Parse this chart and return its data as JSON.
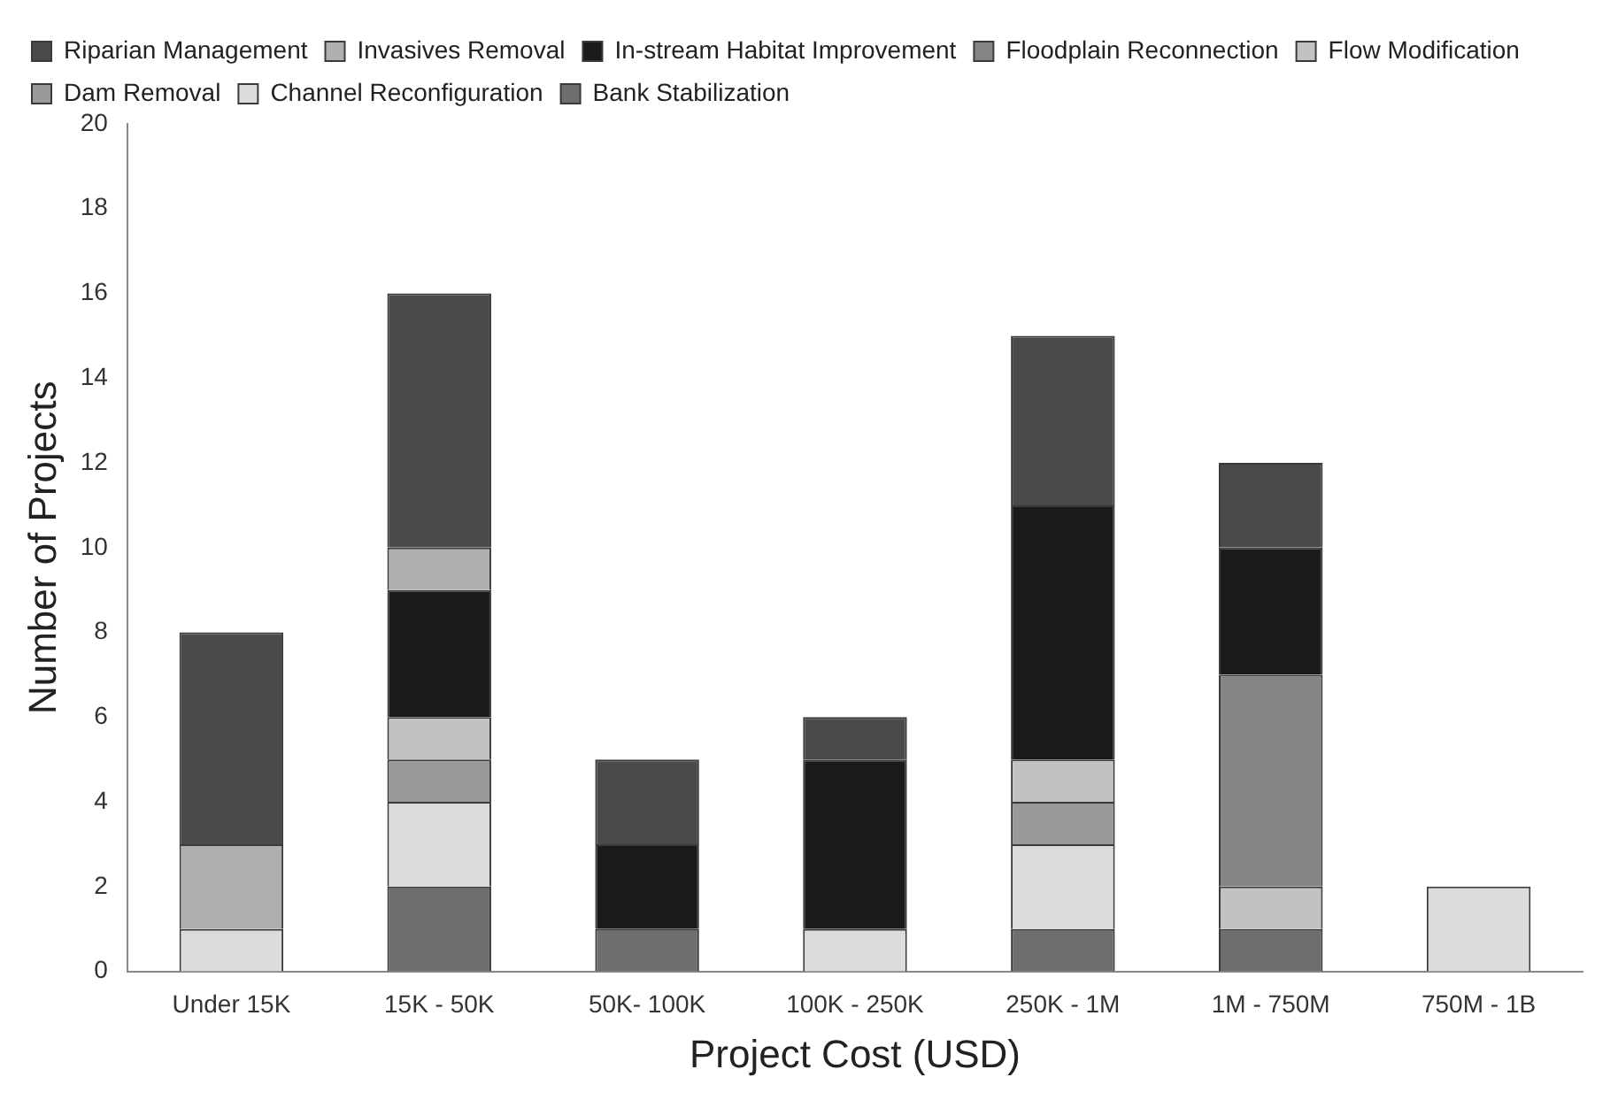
{
  "chart_data": {
    "type": "bar",
    "stacked": true,
    "xlabel": "Project Cost (USD)",
    "ylabel": "Number of Projects",
    "categories": [
      "Under 15K",
      "15K - 50K",
      "50K- 100K",
      "100K - 250K",
      "250K - 1M",
      "1M - 750M",
      "750M - 1B"
    ],
    "series": [
      {
        "name": "Bank Stabilization",
        "color": "#6e6e6e",
        "values": [
          null,
          2,
          1,
          null,
          1,
          1,
          null
        ]
      },
      {
        "name": "Channel Reconfiguration",
        "color": "#dcdcdc",
        "values": [
          1,
          2,
          null,
          1,
          2,
          null,
          2
        ]
      },
      {
        "name": "Dam Removal",
        "color": "#999999",
        "values": [
          null,
          1,
          null,
          null,
          1,
          null,
          null
        ]
      },
      {
        "name": "Flow Modification",
        "color": "#c2c2c2",
        "values": [
          null,
          1,
          null,
          null,
          1,
          1,
          null
        ]
      },
      {
        "name": "Floodplain Reconnection",
        "color": "#858585",
        "values": [
          null,
          null,
          null,
          null,
          null,
          5,
          null
        ]
      },
      {
        "name": "In-stream Habitat Improvement",
        "color": "#1a1a1a",
        "values": [
          null,
          3,
          2,
          4,
          6,
          3,
          null
        ]
      },
      {
        "name": "Invasives Removal",
        "color": "#afafaf",
        "values": [
          2,
          1,
          null,
          null,
          null,
          null,
          null
        ]
      },
      {
        "name": "Riparian Management",
        "color": "#4a4a4a",
        "values": [
          5,
          6,
          2,
          1,
          4,
          2,
          null
        ]
      }
    ],
    "ylim": [
      0,
      20
    ],
    "yticks": [
      0,
      2,
      4,
      6,
      8,
      10,
      12,
      14,
      16,
      18,
      20
    ],
    "grid": false,
    "legend": "top"
  }
}
